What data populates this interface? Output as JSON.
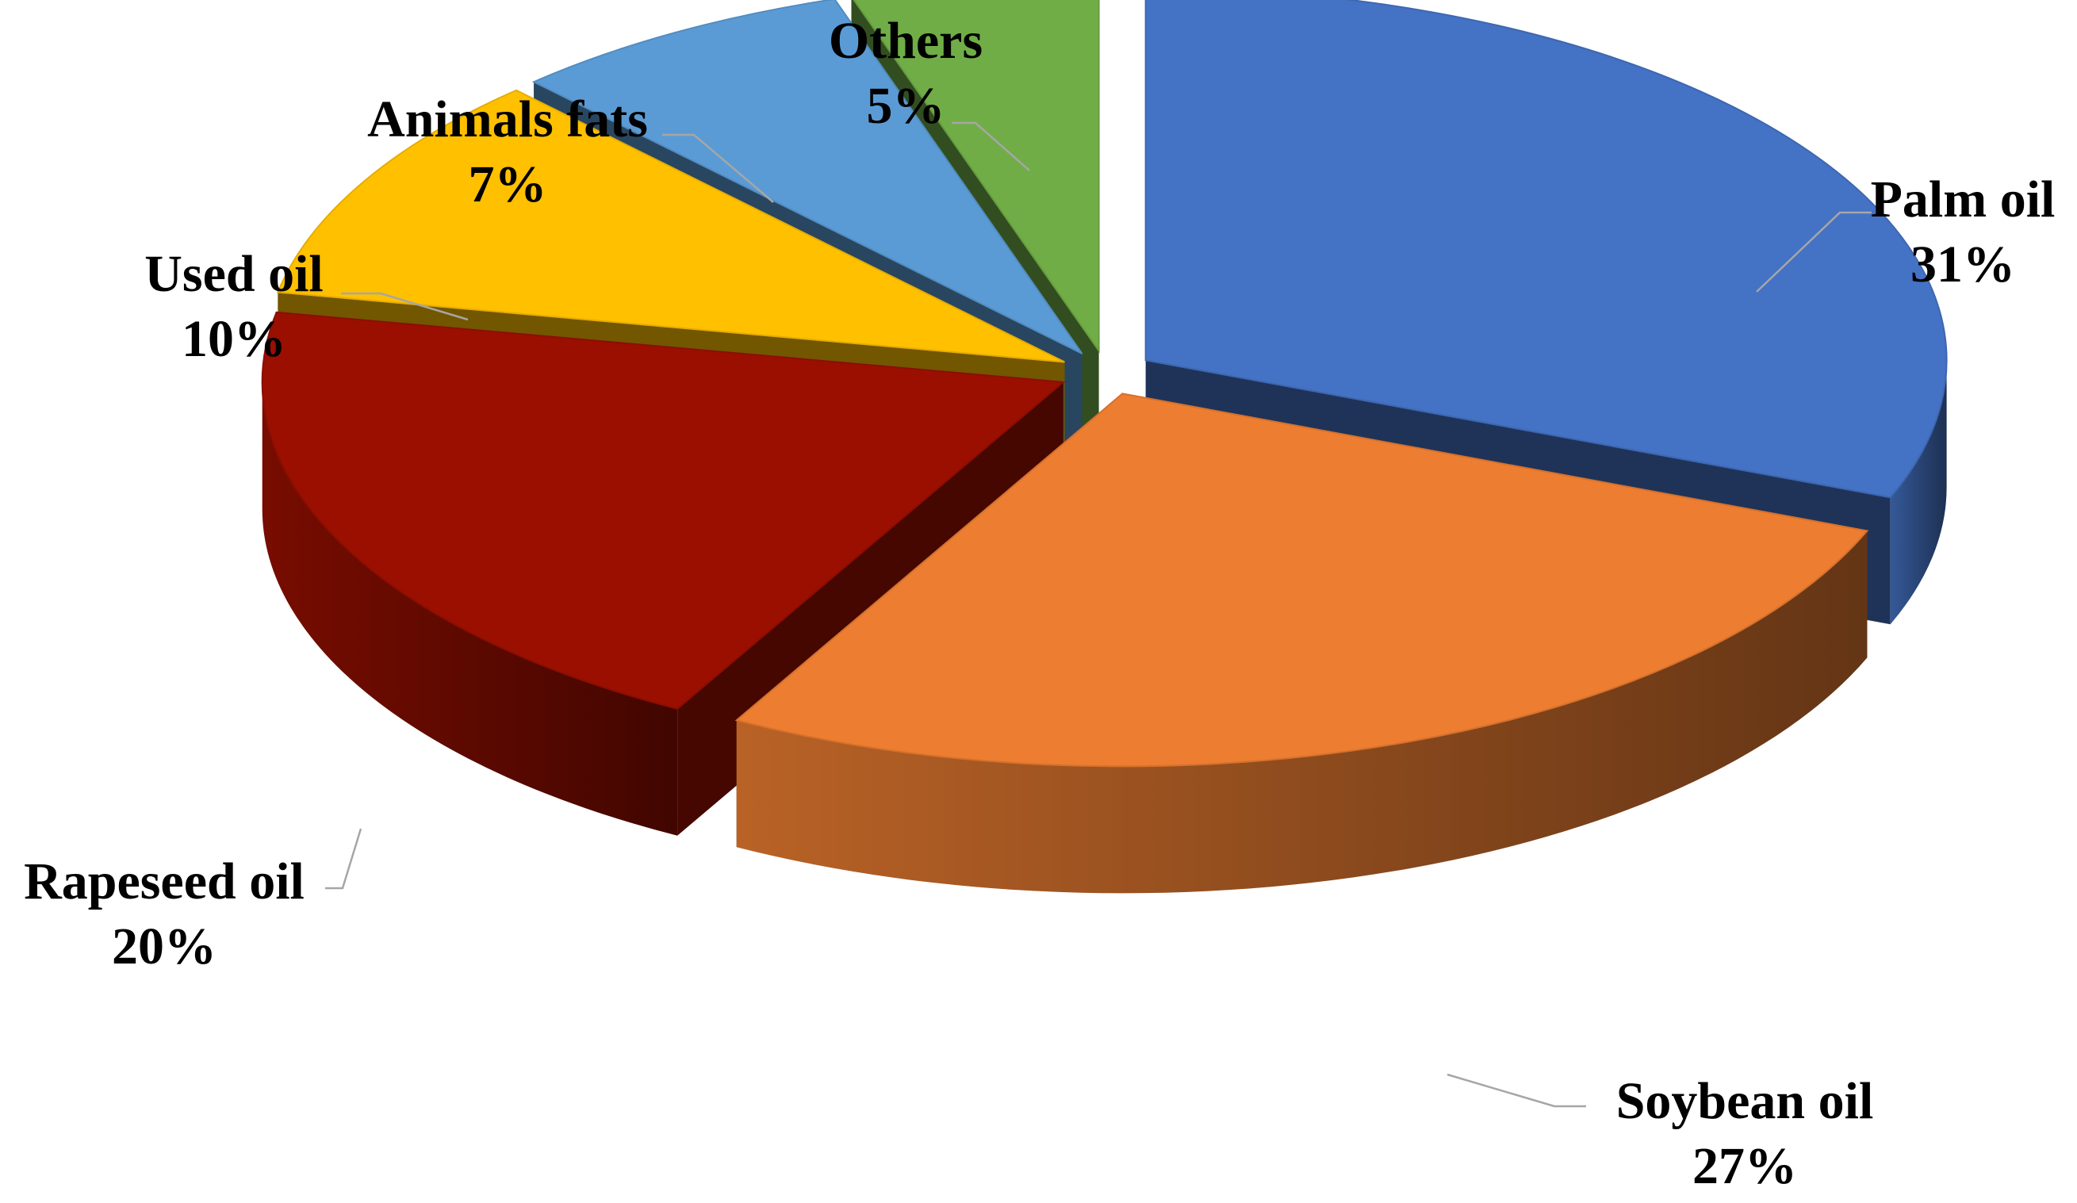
{
  "chart_data": {
    "type": "pie",
    "style": "3d-exploded",
    "legend": "none",
    "slices": [
      {
        "name": "Palm oil",
        "value": 31,
        "label": "31%",
        "color": "#4472C4"
      },
      {
        "name": "Soybean oil",
        "value": 27,
        "label": "27%",
        "color": "#ED7D31"
      },
      {
        "name": "Rapeseed oil",
        "value": 20,
        "label": "20%",
        "color": "#9A0F00"
      },
      {
        "name": "Used oil",
        "value": 10,
        "label": "10%",
        "color": "#FFC000"
      },
      {
        "name": "Animals fats",
        "value": 7,
        "label": "7%",
        "color": "#5B9BD5"
      },
      {
        "name": "Others",
        "value": 5,
        "label": "5%",
        "color": "#70AD47"
      }
    ]
  }
}
